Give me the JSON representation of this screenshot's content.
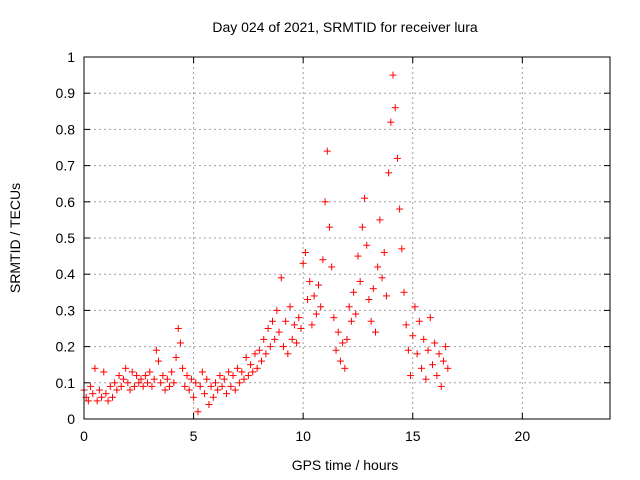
{
  "chart_data": {
    "type": "scatter",
    "title": "Day 024 of 2021, SRMTID for receiver lura",
    "xlabel": "GPS time / hours",
    "ylabel": "SRMTID / TECUs",
    "xlim": [
      0,
      24
    ],
    "ylim": [
      0,
      1
    ],
    "x_ticks": [
      "0",
      "5",
      "10",
      "15",
      "20"
    ],
    "y_ticks": [
      "0",
      "0.1",
      "0.2",
      "0.3",
      "0.4",
      "0.5",
      "0.6",
      "0.7",
      "0.8",
      "0.9",
      "1"
    ],
    "grid": true,
    "marker": "plus",
    "color": "#ff0000",
    "series": [
      {
        "name": "SRMTID",
        "points": [
          [
            0.0,
            0.08
          ],
          [
            0.1,
            0.06
          ],
          [
            0.2,
            0.05
          ],
          [
            0.3,
            0.09
          ],
          [
            0.4,
            0.07
          ],
          [
            0.5,
            0.14
          ],
          [
            0.6,
            0.05
          ],
          [
            0.7,
            0.08
          ],
          [
            0.8,
            0.06
          ],
          [
            0.9,
            0.13
          ],
          [
            1.0,
            0.07
          ],
          [
            1.1,
            0.05
          ],
          [
            1.2,
            0.09
          ],
          [
            1.3,
            0.06
          ],
          [
            1.4,
            0.1
          ],
          [
            1.5,
            0.08
          ],
          [
            1.6,
            0.12
          ],
          [
            1.7,
            0.09
          ],
          [
            1.8,
            0.11
          ],
          [
            1.9,
            0.14
          ],
          [
            2.0,
            0.1
          ],
          [
            2.1,
            0.08
          ],
          [
            2.2,
            0.13
          ],
          [
            2.3,
            0.09
          ],
          [
            2.4,
            0.12
          ],
          [
            2.5,
            0.1
          ],
          [
            2.6,
            0.11
          ],
          [
            2.7,
            0.09
          ],
          [
            2.8,
            0.12
          ],
          [
            2.9,
            0.1
          ],
          [
            3.0,
            0.13
          ],
          [
            3.1,
            0.09
          ],
          [
            3.2,
            0.11
          ],
          [
            3.3,
            0.19
          ],
          [
            3.4,
            0.16
          ],
          [
            3.5,
            0.1
          ],
          [
            3.6,
            0.12
          ],
          [
            3.7,
            0.08
          ],
          [
            3.8,
            0.11
          ],
          [
            3.9,
            0.09
          ],
          [
            4.0,
            0.13
          ],
          [
            4.1,
            0.1
          ],
          [
            4.2,
            0.17
          ],
          [
            4.3,
            0.25
          ],
          [
            4.4,
            0.21
          ],
          [
            4.5,
            0.14
          ],
          [
            4.6,
            0.09
          ],
          [
            4.7,
            0.12
          ],
          [
            4.8,
            0.08
          ],
          [
            4.9,
            0.11
          ],
          [
            5.0,
            0.06
          ],
          [
            5.1,
            0.1
          ],
          [
            5.2,
            0.02
          ],
          [
            5.3,
            0.09
          ],
          [
            5.4,
            0.13
          ],
          [
            5.5,
            0.07
          ],
          [
            5.6,
            0.11
          ],
          [
            5.7,
            0.04
          ],
          [
            5.8,
            0.09
          ],
          [
            5.9,
            0.06
          ],
          [
            6.0,
            0.1
          ],
          [
            6.1,
            0.08
          ],
          [
            6.2,
            0.12
          ],
          [
            6.3,
            0.09
          ],
          [
            6.4,
            0.11
          ],
          [
            6.5,
            0.07
          ],
          [
            6.6,
            0.13
          ],
          [
            6.7,
            0.09
          ],
          [
            6.8,
            0.12
          ],
          [
            6.9,
            0.08
          ],
          [
            7.0,
            0.14
          ],
          [
            7.1,
            0.1
          ],
          [
            7.2,
            0.13
          ],
          [
            7.3,
            0.11
          ],
          [
            7.4,
            0.17
          ],
          [
            7.5,
            0.12
          ],
          [
            7.6,
            0.15
          ],
          [
            7.7,
            0.13
          ],
          [
            7.8,
            0.18
          ],
          [
            7.9,
            0.14
          ],
          [
            8.0,
            0.19
          ],
          [
            8.1,
            0.16
          ],
          [
            8.2,
            0.22
          ],
          [
            8.3,
            0.18
          ],
          [
            8.4,
            0.25
          ],
          [
            8.5,
            0.2
          ],
          [
            8.6,
            0.27
          ],
          [
            8.7,
            0.22
          ],
          [
            8.8,
            0.3
          ],
          [
            8.9,
            0.24
          ],
          [
            9.0,
            0.39
          ],
          [
            9.1,
            0.2
          ],
          [
            9.2,
            0.27
          ],
          [
            9.3,
            0.18
          ],
          [
            9.4,
            0.31
          ],
          [
            9.5,
            0.22
          ],
          [
            9.6,
            0.26
          ],
          [
            9.7,
            0.21
          ],
          [
            9.8,
            0.28
          ],
          [
            9.9,
            0.25
          ],
          [
            10.0,
            0.43
          ],
          [
            10.1,
            0.46
          ],
          [
            10.2,
            0.33
          ],
          [
            10.3,
            0.38
          ],
          [
            10.4,
            0.26
          ],
          [
            10.5,
            0.34
          ],
          [
            10.6,
            0.29
          ],
          [
            10.7,
            0.37
          ],
          [
            10.8,
            0.31
          ],
          [
            10.9,
            0.44
          ],
          [
            11.0,
            0.6
          ],
          [
            11.1,
            0.74
          ],
          [
            11.2,
            0.53
          ],
          [
            11.3,
            0.42
          ],
          [
            11.4,
            0.28
          ],
          [
            11.5,
            0.19
          ],
          [
            11.6,
            0.24
          ],
          [
            11.7,
            0.16
          ],
          [
            11.8,
            0.21
          ],
          [
            11.9,
            0.14
          ],
          [
            12.0,
            0.22
          ],
          [
            12.1,
            0.31
          ],
          [
            12.2,
            0.27
          ],
          [
            12.3,
            0.35
          ],
          [
            12.4,
            0.29
          ],
          [
            12.5,
            0.45
          ],
          [
            12.6,
            0.38
          ],
          [
            12.7,
            0.53
          ],
          [
            12.8,
            0.61
          ],
          [
            12.9,
            0.48
          ],
          [
            13.0,
            0.33
          ],
          [
            13.1,
            0.27
          ],
          [
            13.2,
            0.36
          ],
          [
            13.3,
            0.24
          ],
          [
            13.4,
            0.42
          ],
          [
            13.5,
            0.55
          ],
          [
            13.6,
            0.39
          ],
          [
            13.7,
            0.46
          ],
          [
            13.8,
            0.34
          ],
          [
            13.9,
            0.68
          ],
          [
            14.0,
            0.82
          ],
          [
            14.1,
            0.95
          ],
          [
            14.2,
            0.86
          ],
          [
            14.3,
            0.72
          ],
          [
            14.4,
            0.58
          ],
          [
            14.5,
            0.47
          ],
          [
            14.6,
            0.35
          ],
          [
            14.7,
            0.26
          ],
          [
            14.8,
            0.19
          ],
          [
            14.9,
            0.12
          ],
          [
            15.0,
            0.23
          ],
          [
            15.1,
            0.31
          ],
          [
            15.2,
            0.18
          ],
          [
            15.3,
            0.27
          ],
          [
            15.4,
            0.14
          ],
          [
            15.5,
            0.22
          ],
          [
            15.6,
            0.11
          ],
          [
            15.7,
            0.19
          ],
          [
            15.8,
            0.28
          ],
          [
            15.9,
            0.15
          ],
          [
            16.0,
            0.21
          ],
          [
            16.1,
            0.12
          ],
          [
            16.2,
            0.18
          ],
          [
            16.3,
            0.09
          ],
          [
            16.4,
            0.16
          ],
          [
            16.5,
            0.2
          ],
          [
            16.6,
            0.14
          ]
        ]
      }
    ]
  }
}
